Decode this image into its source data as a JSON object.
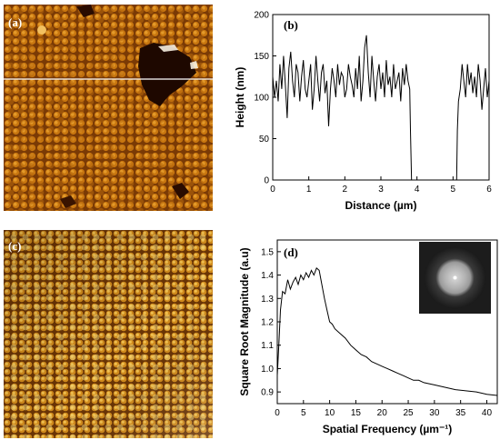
{
  "panels": {
    "a": {
      "label": "(a)"
    },
    "c": {
      "label": "(c)"
    }
  },
  "chart_data": [
    {
      "id": "b",
      "panel_label": "(b)",
      "type": "line",
      "xlabel": "Distance (µm)",
      "ylabel": "Height (nm)",
      "xlim": [
        0,
        6
      ],
      "ylim": [
        0,
        200
      ],
      "xticks": [
        "0",
        "1",
        "2",
        "3",
        "4",
        "5",
        "6"
      ],
      "yticks": [
        "0",
        "50",
        "100",
        "150",
        "200"
      ],
      "series": [
        {
          "x": [
            0.0,
            0.05,
            0.1,
            0.15,
            0.2,
            0.25,
            0.3,
            0.35,
            0.4,
            0.45,
            0.5,
            0.55,
            0.6,
            0.65,
            0.7,
            0.75,
            0.8,
            0.85,
            0.9,
            0.95,
            1.0,
            1.05,
            1.1,
            1.15,
            1.2,
            1.25,
            1.3,
            1.35,
            1.4,
            1.45,
            1.5,
            1.55,
            1.6,
            1.65,
            1.7,
            1.75,
            1.8,
            1.85,
            1.9,
            1.95,
            2.0,
            2.05,
            2.1,
            2.15,
            2.2,
            2.25,
            2.3,
            2.35,
            2.4,
            2.45,
            2.5,
            2.55,
            2.6,
            2.65,
            2.7,
            2.75,
            2.8,
            2.85,
            2.9,
            2.95,
            3.0,
            3.05,
            3.1,
            3.15,
            3.2,
            3.25,
            3.3,
            3.35,
            3.4,
            3.45,
            3.5,
            3.55,
            3.6,
            3.65,
            3.7,
            3.75,
            3.8,
            3.82,
            3.85,
            3.9,
            4.5,
            5.0,
            5.1,
            5.12,
            5.15,
            5.2,
            5.25,
            5.3,
            5.35,
            5.4,
            5.45,
            5.5,
            5.55,
            5.6,
            5.65,
            5.7,
            5.75,
            5.8,
            5.85,
            5.9,
            5.95,
            6.0
          ],
          "y": [
            125,
            100,
            120,
            95,
            140,
            110,
            150,
            115,
            75,
            135,
            155,
            120,
            100,
            140,
            130,
            95,
            125,
            145,
            110,
            100,
            120,
            140,
            85,
            110,
            150,
            120,
            95,
            130,
            140,
            105,
            120,
            65,
            110,
            135,
            120,
            100,
            140,
            115,
            130,
            125,
            100,
            110,
            140,
            125,
            115,
            100,
            135,
            110,
            150,
            95,
            120,
            160,
            175,
            130,
            100,
            150,
            120,
            95,
            125,
            140,
            110,
            130,
            100,
            145,
            115,
            125,
            100,
            140,
            110,
            120,
            130,
            95,
            135,
            115,
            140,
            120,
            110,
            60,
            0,
            0,
            0,
            0,
            0,
            60,
            95,
            110,
            140,
            120,
            100,
            140,
            115,
            130,
            105,
            125,
            100,
            140,
            120,
            85,
            110,
            135,
            100,
            120
          ]
        }
      ]
    },
    {
      "id": "d",
      "panel_label": "(d)",
      "type": "line",
      "xlabel": "Spatial Frequency (µm⁻¹)",
      "ylabel": "Square Root Magnitude (a.u)",
      "xlim": [
        0,
        42
      ],
      "ylim": [
        0.85,
        1.55
      ],
      "xticks": [
        "0",
        "5",
        "10",
        "15",
        "20",
        "25",
        "30",
        "35",
        "40"
      ],
      "yticks": [
        "0.9",
        "1.0",
        "1.1",
        "1.2",
        "1.3",
        "1.4",
        "1.5"
      ],
      "series": [
        {
          "x": [
            0,
            0.3,
            0.6,
            1,
            1.5,
            2,
            2.5,
            3,
            3.5,
            4,
            4.5,
            5,
            5.5,
            6,
            6.5,
            7,
            7.5,
            8,
            8.5,
            9,
            9.5,
            10,
            10.5,
            11,
            12,
            13,
            14,
            15,
            16,
            17,
            18,
            19,
            20,
            21,
            22,
            23,
            24,
            25,
            26,
            27,
            28,
            30,
            32,
            34,
            36,
            38,
            40,
            42
          ],
          "y": [
            0.97,
            1.1,
            1.25,
            1.33,
            1.32,
            1.38,
            1.34,
            1.37,
            1.39,
            1.36,
            1.4,
            1.38,
            1.41,
            1.39,
            1.42,
            1.4,
            1.43,
            1.42,
            1.36,
            1.3,
            1.25,
            1.2,
            1.19,
            1.17,
            1.15,
            1.13,
            1.1,
            1.08,
            1.06,
            1.05,
            1.03,
            1.02,
            1.01,
            1.0,
            0.99,
            0.98,
            0.97,
            0.96,
            0.95,
            0.95,
            0.94,
            0.93,
            0.92,
            0.91,
            0.905,
            0.9,
            0.89,
            0.885
          ]
        }
      ]
    }
  ]
}
